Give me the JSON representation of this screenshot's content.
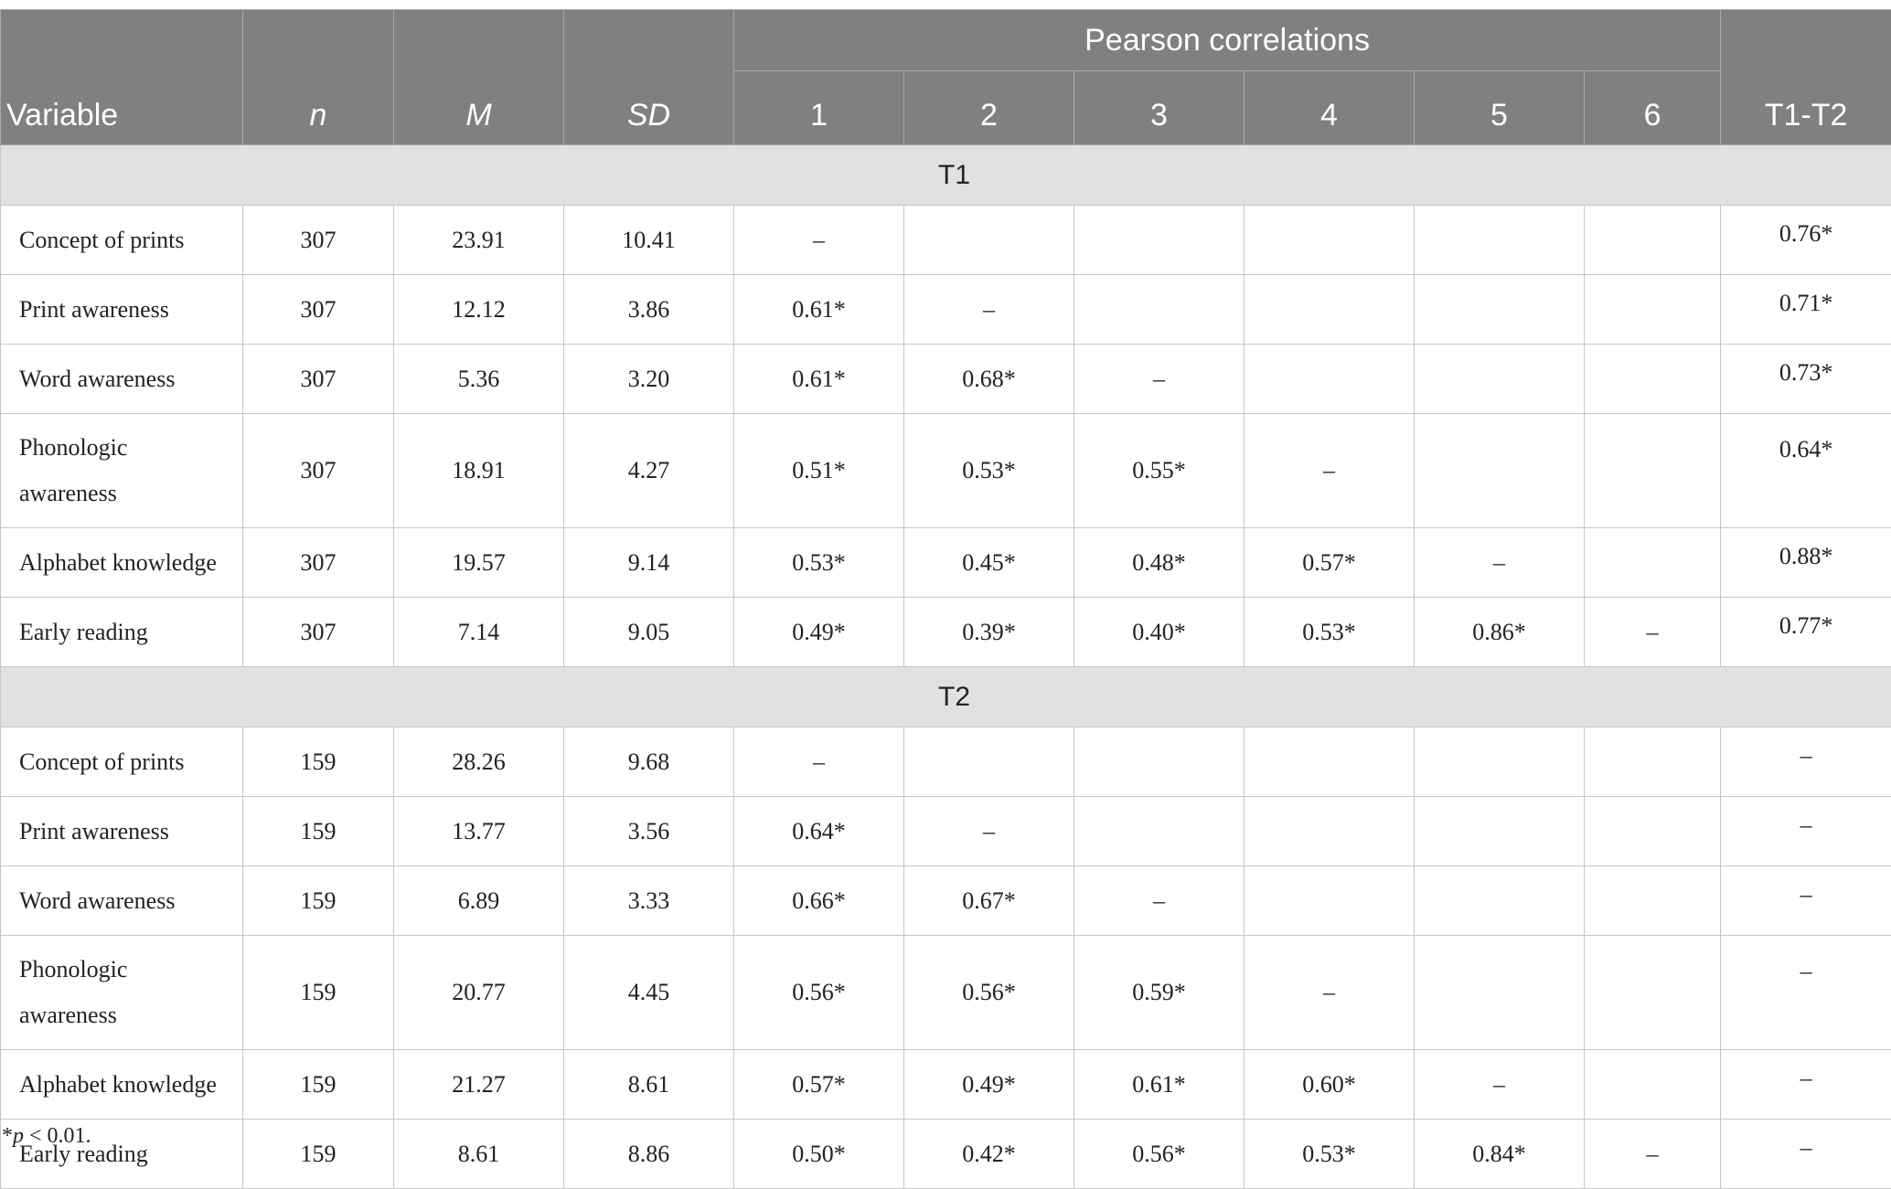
{
  "header": {
    "variable": "Variable",
    "n": "n",
    "m": "M",
    "sd": "SD",
    "group": "Pearson correlations",
    "cols": [
      "1",
      "2",
      "3",
      "4",
      "5",
      "6"
    ],
    "t1t2": "T1-T2"
  },
  "sections": [
    {
      "label": "T1",
      "rows": [
        [
          "Concept of prints",
          "307",
          "23.91",
          "10.41",
          "–",
          null,
          null,
          null,
          null,
          null,
          "0.76*"
        ],
        [
          "Print awareness",
          "307",
          "12.12",
          "3.86",
          "0.61*",
          "–",
          null,
          null,
          null,
          null,
          "0.71*"
        ],
        [
          "Word awareness",
          "307",
          "5.36",
          "3.20",
          "0.61*",
          "0.68*",
          "–",
          null,
          null,
          null,
          "0.73*"
        ],
        [
          "Phonologic awareness",
          "307",
          "18.91",
          "4.27",
          "0.51*",
          "0.53*",
          "0.55*",
          "–",
          null,
          null,
          "0.64*"
        ],
        [
          "Alphabet knowledge",
          "307",
          "19.57",
          "9.14",
          "0.53*",
          "0.45*",
          "0.48*",
          "0.57*",
          "–",
          null,
          "0.88*"
        ],
        [
          "Early reading",
          "307",
          "7.14",
          "9.05",
          "0.49*",
          "0.39*",
          "0.40*",
          "0.53*",
          "0.86*",
          "–",
          "0.77*"
        ]
      ]
    },
    {
      "label": "T2",
      "rows": [
        [
          "Concept of prints",
          "159",
          "28.26",
          "9.68",
          "–",
          null,
          null,
          null,
          null,
          null,
          "–"
        ],
        [
          "Print awareness",
          "159",
          "13.77",
          "3.56",
          "0.64*",
          "–",
          null,
          null,
          null,
          null,
          "–"
        ],
        [
          "Word awareness",
          "159",
          "6.89",
          "3.33",
          "0.66*",
          "0.67*",
          "–",
          null,
          null,
          null,
          "–"
        ],
        [
          "Phonologic awareness",
          "159",
          "20.77",
          "4.45",
          "0.56*",
          "0.56*",
          "0.59*",
          "–",
          null,
          null,
          "–"
        ],
        [
          "Alphabet knowledge",
          "159",
          "21.27",
          "8.61",
          "0.57*",
          "0.49*",
          "0.61*",
          "0.60*",
          "–",
          null,
          "–"
        ],
        [
          "Early reading",
          "159",
          "8.61",
          "8.86",
          "0.50*",
          "0.42*",
          "0.56*",
          "0.53*",
          "0.84*",
          "–",
          "–"
        ]
      ]
    }
  ],
  "footnote": {
    "marker": "*",
    "italic": "p",
    "rest": " < 0.01."
  }
}
